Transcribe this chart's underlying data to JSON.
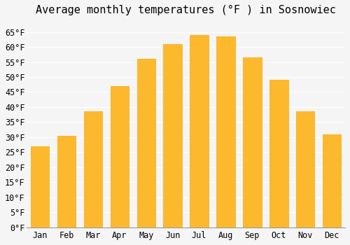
{
  "title": "Average monthly temperatures (°F ) in Sosnowiec",
  "months": [
    "Jan",
    "Feb",
    "Mar",
    "Apr",
    "May",
    "Jun",
    "Jul",
    "Aug",
    "Sep",
    "Oct",
    "Nov",
    "Dec"
  ],
  "values": [
    27,
    30.5,
    38.5,
    47,
    56,
    61,
    64,
    63.5,
    56.5,
    49,
    38.5,
    31
  ],
  "bar_color": "#FDB92E",
  "bar_edge_color": "#FFA500",
  "ylim": [
    0,
    68
  ],
  "yticks": [
    0,
    5,
    10,
    15,
    20,
    25,
    30,
    35,
    40,
    45,
    50,
    55,
    60,
    65
  ],
  "ytick_labels": [
    "0°F",
    "5°F",
    "10°F",
    "15°F",
    "20°F",
    "25°F",
    "30°F",
    "35°F",
    "40°F",
    "45°F",
    "50°F",
    "55°F",
    "60°F",
    "65°F"
  ],
  "background_color": "#f5f5f5",
  "grid_color": "#ffffff",
  "title_fontsize": 11,
  "tick_fontsize": 8.5,
  "font_family": "monospace"
}
